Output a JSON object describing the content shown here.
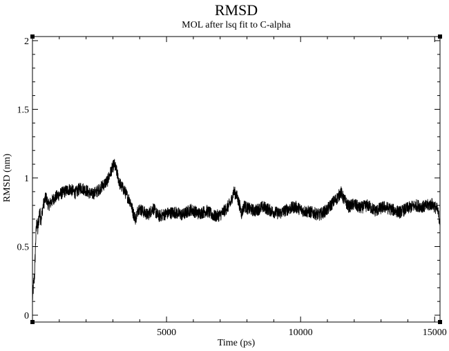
{
  "chart_data": {
    "type": "line",
    "title": "RMSD",
    "subtitle": "MOL after lsq fit to C-alpha",
    "xlabel": "Time (ps)",
    "ylabel": "RMSD (nm)",
    "xlim": [
      0,
      15200
    ],
    "ylim": [
      -0.05,
      2.03
    ],
    "x_ticks": [
      5000,
      10000,
      15000
    ],
    "x_tick_labels": [
      "5000",
      "10000",
      "15000"
    ],
    "y_ticks": [
      0,
      0.5,
      1,
      1.5,
      2
    ],
    "y_tick_labels": [
      "0",
      "0.5",
      "1",
      "1.5",
      "2"
    ],
    "grid": false,
    "legend": "none",
    "line_color": "#000000",
    "series": [
      {
        "x": [
          0,
          40,
          80,
          120,
          160,
          200,
          260,
          320,
          400,
          500,
          600,
          800,
          1000,
          1200,
          1400,
          1600,
          1800,
          2000,
          2200,
          2400,
          2600,
          2800,
          2950,
          3050,
          3150,
          3250,
          3350,
          3450,
          3550,
          3650,
          3750,
          3850,
          3950,
          4100,
          4300,
          4500,
          4700,
          5000,
          5300,
          5600,
          5900,
          6200,
          6500,
          6800,
          7000,
          7200,
          7400,
          7500,
          7600,
          7700,
          7800,
          7900,
          8000,
          8300,
          8600,
          8900,
          9200,
          9500,
          9800,
          10100,
          10400,
          10700,
          11000,
          11200,
          11400,
          11500,
          11600,
          11800,
          12000,
          12200,
          12500,
          12800,
          13100,
          13400,
          13700,
          14000,
          14300,
          14600,
          14900,
          15100,
          15200
        ],
        "y": [
          0.12,
          0.22,
          0.3,
          0.55,
          0.68,
          0.62,
          0.75,
          0.7,
          0.8,
          0.86,
          0.8,
          0.85,
          0.88,
          0.9,
          0.92,
          0.89,
          0.93,
          0.91,
          0.88,
          0.9,
          0.94,
          0.98,
          1.06,
          1.1,
          1.04,
          0.96,
          0.93,
          0.9,
          0.86,
          0.83,
          0.75,
          0.7,
          0.78,
          0.76,
          0.73,
          0.78,
          0.72,
          0.74,
          0.75,
          0.73,
          0.77,
          0.74,
          0.76,
          0.72,
          0.73,
          0.77,
          0.82,
          0.9,
          0.88,
          0.82,
          0.74,
          0.8,
          0.78,
          0.76,
          0.79,
          0.76,
          0.74,
          0.77,
          0.79,
          0.76,
          0.75,
          0.73,
          0.77,
          0.82,
          0.86,
          0.9,
          0.85,
          0.79,
          0.81,
          0.78,
          0.8,
          0.76,
          0.79,
          0.77,
          0.75,
          0.78,
          0.8,
          0.79,
          0.81,
          0.77,
          0.68
        ]
      }
    ]
  }
}
